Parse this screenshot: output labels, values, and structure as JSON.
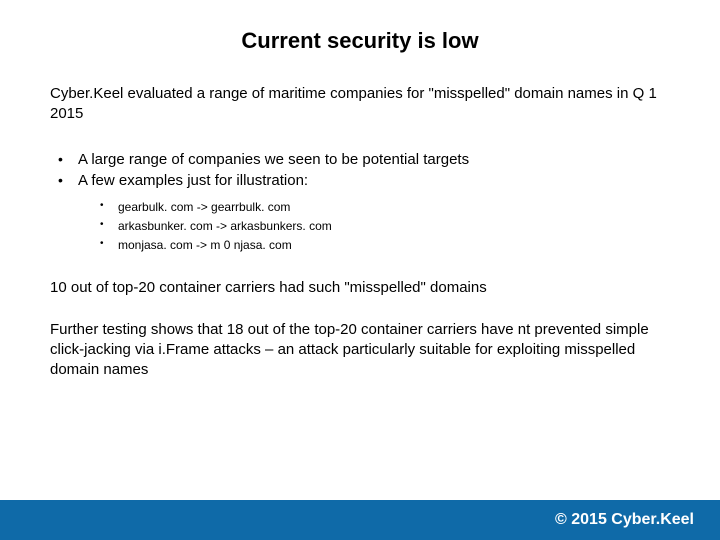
{
  "title": "Current security is low",
  "intro": "Cyber.Keel evaluated a range of maritime companies for \"misspelled\" domain names in Q 1 2015",
  "bullets": {
    "b1": "A large range of companies we seen to be potential targets",
    "b2": "A few examples just for illustration:"
  },
  "examples": {
    "e1": "gearbulk. com -> gearrbulk. com",
    "e2": "arkasbunker. com -> arkasbunkers. com",
    "e3": "monjasa. com -> m 0 njasa. com"
  },
  "para1": "10 out of top-20 container carriers had such \"misspelled\" domains",
  "para2": "Further testing shows that 18 out of the top-20 container carriers have nt prevented simple click-jacking via i.Frame attacks – an attack particularly suitable for exploiting misspelled domain names",
  "footer": "© 2015 Cyber.Keel",
  "colors": {
    "footer_bg": "#0f6aa8",
    "text": "#000000",
    "footer_text": "#ffffff",
    "background": "#ffffff"
  }
}
